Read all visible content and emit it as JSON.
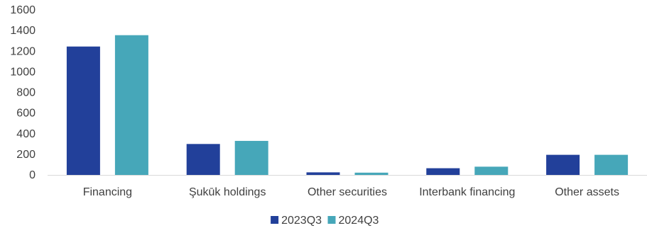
{
  "chart_data": {
    "type": "bar",
    "categories": [
      "Financing",
      "Şukūk holdings",
      "Other securities",
      "Interbank financing",
      "Other assets"
    ],
    "series": [
      {
        "name": "2023Q3",
        "color": "#22409a",
        "values": [
          1245,
          300,
          25,
          65,
          195
        ]
      },
      {
        "name": "2024Q3",
        "color": "#46a7b9",
        "values": [
          1355,
          330,
          22,
          80,
          195
        ]
      }
    ],
    "yticks": [
      "0",
      "200",
      "400",
      "600",
      "800",
      "1000",
      "1200",
      "1400",
      "1600"
    ],
    "ylim": [
      0,
      1600
    ],
    "title": "",
    "xlabel": "",
    "ylabel": "",
    "grid": false,
    "legend": "bottom-center"
  }
}
